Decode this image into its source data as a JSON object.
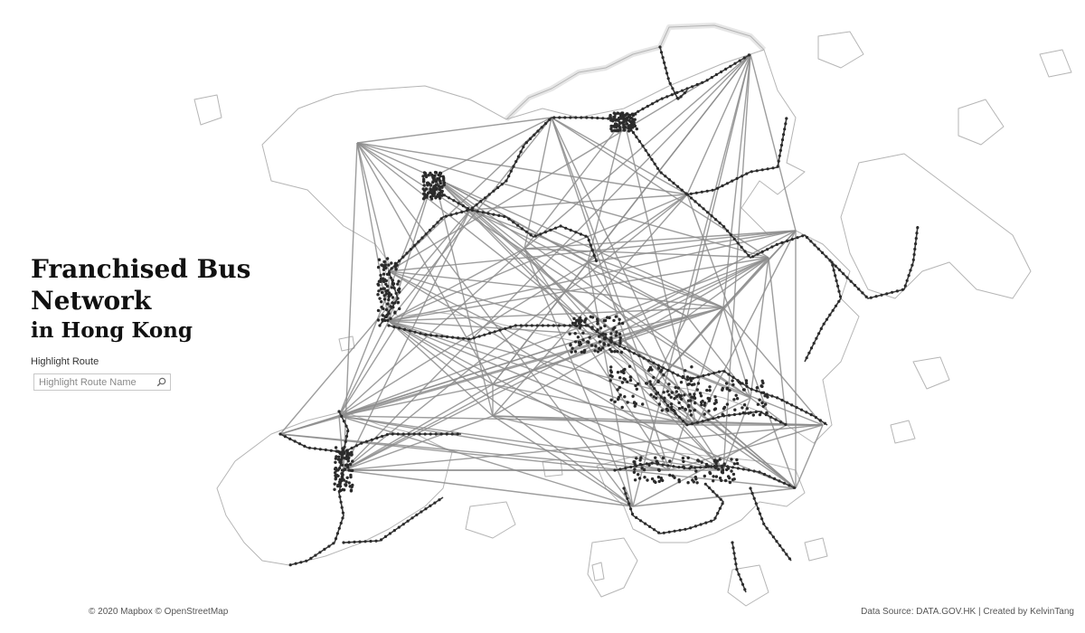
{
  "title": {
    "line1": "Franchised Bus",
    "line2": "Network",
    "line3": "in Hong Kong"
  },
  "highlight": {
    "label": "Highlight Route",
    "placeholder": "Highlight Route Name",
    "icon": "search-icon"
  },
  "attribution": {
    "map": "© 2020 Mapbox © OpenStreetMap",
    "source": "Data Source: DATA.GOV.HK | Created by KelvinTang"
  },
  "colors": {
    "coastline": "#b5b5b5",
    "route_lines": "#8c8c8c",
    "stops": "#2b2b2b"
  }
}
